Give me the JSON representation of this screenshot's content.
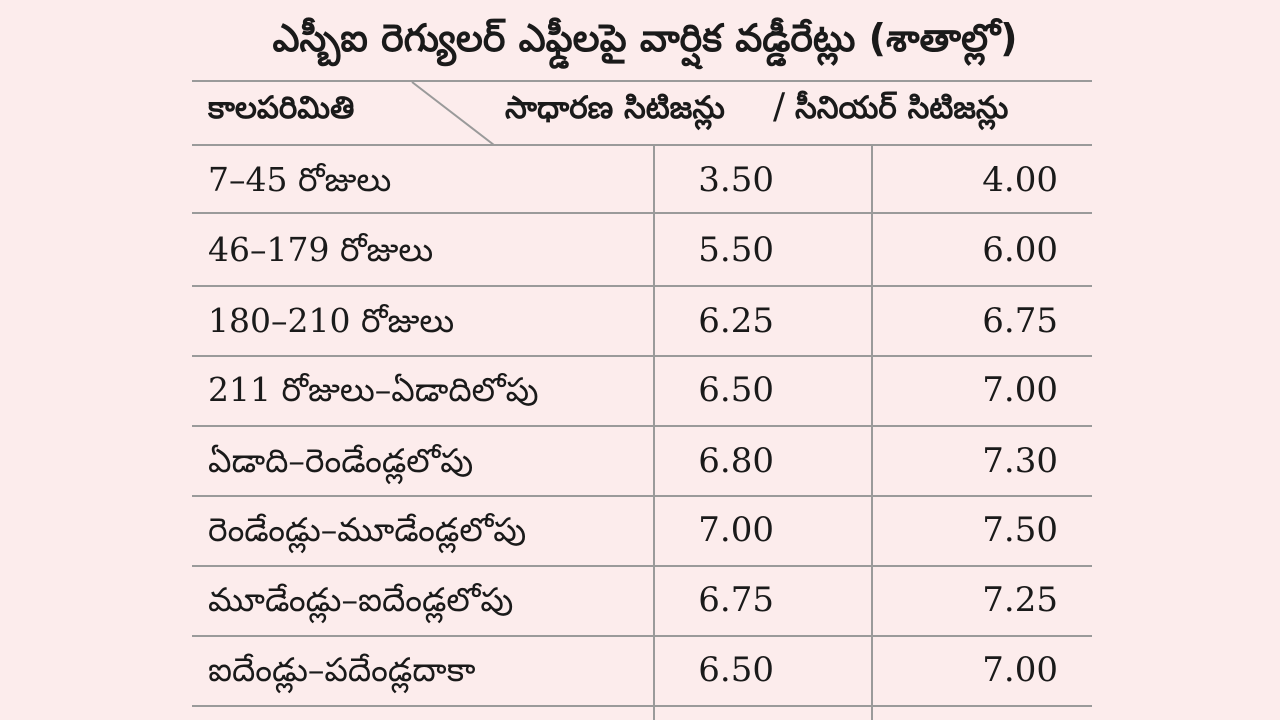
{
  "title": "ఎస్బీఐ రెగ్యులర్ ఎఫ్డీలపై వార్షిక వడ్డీరేట్లు (శాతాల్లో)",
  "header": {
    "period": "కాలపరిమితి",
    "general": "సాధారణ సిటిజన్లు",
    "separator": "/",
    "senior": "సీనియర్ సిటిజన్లు"
  },
  "rows": [
    {
      "period": "7–45 రోజులు",
      "general": "3.50",
      "senior": "4.00"
    },
    {
      "period": "46–179 రోజులు",
      "general": "5.50",
      "senior": "6.00"
    },
    {
      "period": "180–210 రోజులు",
      "general": "6.25",
      "senior": "6.75"
    },
    {
      "period": "211 రోజులు–ఏడాదిలోపు",
      "general": "6.50",
      "senior": "7.00"
    },
    {
      "period": "ఏడాది–రెండేండ్లలోపు",
      "general": "6.80",
      "senior": "7.30"
    },
    {
      "period": "రెండేండ్లు–మూడేండ్లలోపు",
      "general": "7.00",
      "senior": "7.50"
    },
    {
      "period": "మూడేండ్లు–ఐదేండ్లలోపు",
      "general": "6.75",
      "senior": "7.25"
    },
    {
      "period": "ఐదేండ్లు–పదేండ్లదాకా",
      "general": "6.50",
      "senior": "7.00"
    }
  ],
  "colors": {
    "background": "#fcecec",
    "rule": "#9a9a9a",
    "text": "#1a1a1a"
  }
}
